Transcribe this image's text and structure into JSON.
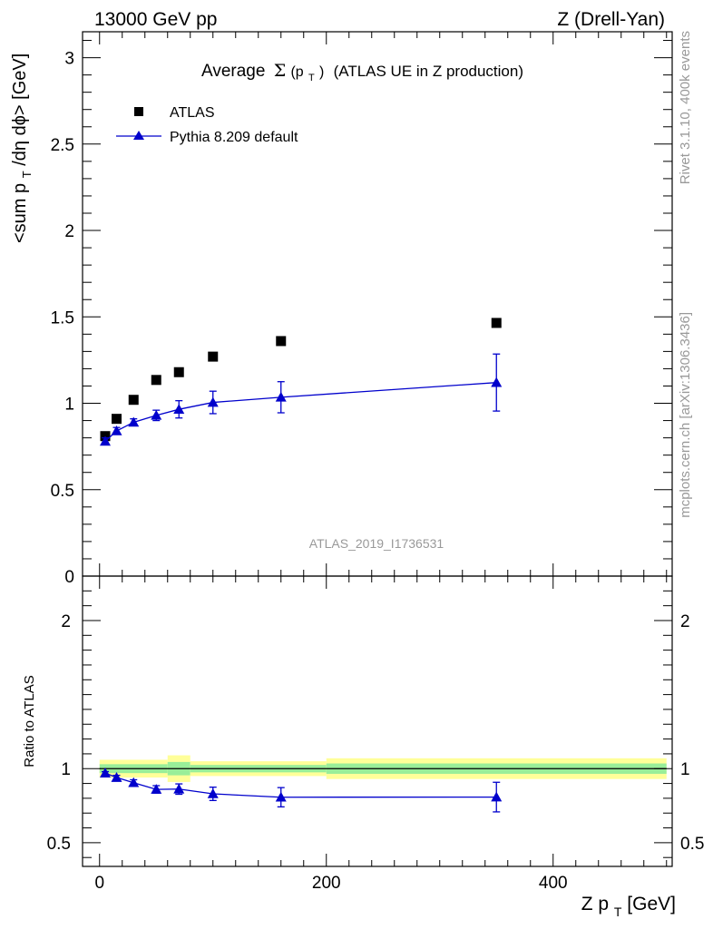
{
  "header": {
    "left": "13000 GeV pp",
    "right": "Z (Drell-Yan)"
  },
  "side_labels": {
    "rivet": "Rivet 3.1.10,  400k events",
    "source": "mcplots.cern.ch [arXiv:1306.3436]"
  },
  "chart_data": [
    {
      "type": "scatter",
      "panel": "main",
      "title_prefix": "Average",
      "title_sigma": "Σ",
      "title_arg": "(p",
      "title_arg_sub": "T",
      "title_arg_close": ")",
      "title_suffix": "(ATLAS UE in Z production)",
      "ylabel": "<sum p_T/dη dϕ> [GeV]",
      "ylabel_parts": {
        "a": "<sum p",
        "sub": "T",
        "b": "/dη dϕ> [GeV]"
      },
      "watermark": "ATLAS_2019_I1736531",
      "xlim": [
        -15,
        505
      ],
      "ylim": [
        0,
        3.15
      ],
      "yticks": [
        0,
        0.5,
        1,
        1.5,
        2,
        2.5,
        3
      ],
      "ytick_labels": [
        "0",
        "0.5",
        "1",
        "1.5",
        "2",
        "2.5",
        "3"
      ],
      "series": [
        {
          "name": "ATLAS",
          "marker": "square",
          "color": "#000000",
          "x": [
            5,
            15,
            30,
            50,
            70,
            100,
            160,
            350
          ],
          "y": [
            0.81,
            0.91,
            1.02,
            1.135,
            1.18,
            1.27,
            1.36,
            1.465
          ]
        },
        {
          "name": "Pythia 8.209 default",
          "marker": "triangle",
          "color": "#0000cc",
          "x": [
            5,
            15,
            30,
            50,
            70,
            100,
            160,
            350
          ],
          "y": [
            0.78,
            0.84,
            0.89,
            0.93,
            0.965,
            1.005,
            1.035,
            1.12
          ],
          "yerr": [
            0.02,
            0.02,
            0.02,
            0.03,
            0.05,
            0.065,
            0.09,
            0.165
          ]
        }
      ]
    },
    {
      "type": "line",
      "panel": "ratio",
      "ylabel": "Ratio to ATLAS",
      "xlabel": "Z p_T [GeV]",
      "xlabel_parts": {
        "a": "Z p",
        "sub": "T",
        "b": " [GeV]"
      },
      "xlim": [
        -15,
        505
      ],
      "ylim": [
        0.34,
        2.3
      ],
      "xticks": [
        0,
        200,
        400
      ],
      "xtick_labels": [
        "0",
        "200",
        "400"
      ],
      "yticks": [
        0.5,
        1,
        2
      ],
      "ytick_labels": [
        "0.5",
        "1",
        "2"
      ],
      "reference": 1,
      "band_bins": [
        {
          "x0": 0,
          "x1": 60,
          "green": 0.03,
          "yellow": 0.06
        },
        {
          "x0": 60,
          "x1": 80,
          "green": 0.045,
          "yellow": 0.09
        },
        {
          "x0": 80,
          "x1": 200,
          "green": 0.025,
          "yellow": 0.05
        },
        {
          "x0": 200,
          "x1": 500,
          "green": 0.035,
          "yellow": 0.07
        }
      ],
      "series": [
        {
          "name": "Pythia 8.209 default",
          "color": "#0000cc",
          "x": [
            5,
            15,
            30,
            50,
            70,
            100,
            160,
            350
          ],
          "y": [
            0.97,
            0.94,
            0.905,
            0.86,
            0.862,
            0.83,
            0.807,
            0.808
          ],
          "yerr": [
            0.01,
            0.015,
            0.02,
            0.025,
            0.035,
            0.045,
            0.065,
            0.1
          ]
        }
      ]
    }
  ]
}
